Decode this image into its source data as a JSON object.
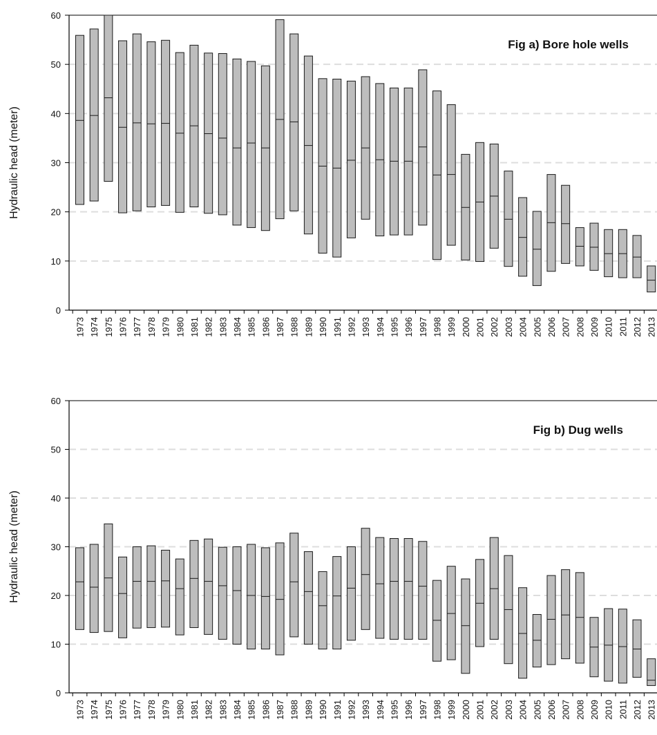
{
  "colors": {
    "box_fill": "#bdbdbd",
    "box_stroke": "#1a1a1a",
    "grid": "#dddddd",
    "axis": "#000000"
  },
  "chart_data": [
    {
      "type": "boxplot",
      "title": "Fig a) Bore hole wells",
      "ylabel": "Hydraulic head (meter)",
      "xlabel": "",
      "ylim": [
        0,
        60
      ],
      "yticks": [
        0,
        10,
        20,
        30,
        40,
        50,
        60
      ],
      "grid": "horizontal dashed",
      "categories": [
        "1973",
        "1974",
        "1975",
        "1976",
        "1977",
        "1978",
        "1979",
        "1980",
        "1981",
        "1982",
        "1983",
        "1984",
        "1985",
        "1986",
        "1987",
        "1988",
        "1989",
        "1990",
        "1991",
        "1992",
        "1993",
        "1994",
        "1995",
        "1996",
        "1997",
        "1998",
        "1999",
        "2000",
        "2001",
        "2002",
        "2003",
        "2004",
        "2005",
        "2006",
        "2007",
        "2008",
        "2009",
        "2010",
        "2011",
        "2012",
        "2013"
      ],
      "low": [
        21.5,
        22.2,
        26.2,
        19.8,
        20.2,
        21.0,
        21.3,
        19.9,
        21.0,
        19.7,
        19.4,
        17.3,
        16.8,
        16.2,
        18.6,
        20.2,
        15.5,
        11.6,
        10.8,
        14.7,
        18.5,
        15.1,
        15.3,
        15.3,
        17.3,
        10.3,
        13.2,
        10.2,
        9.9,
        12.6,
        8.9,
        6.9,
        5.0,
        7.9,
        9.5,
        9.0,
        8.1,
        6.8,
        6.6,
        6.6,
        3.7
      ],
      "median": [
        38.6,
        39.6,
        43.2,
        37.2,
        38.1,
        37.9,
        38.0,
        36.0,
        37.5,
        35.9,
        35.0,
        33.0,
        34.0,
        33.0,
        38.8,
        38.3,
        33.5,
        29.3,
        28.9,
        30.5,
        33.0,
        30.6,
        30.3,
        30.3,
        33.2,
        27.5,
        27.6,
        20.9,
        22.0,
        23.2,
        18.5,
        14.8,
        12.4,
        17.8,
        17.6,
        13.0,
        12.8,
        11.5,
        11.5,
        10.8,
        6.1
      ],
      "high": [
        55.9,
        57.2,
        60.0,
        54.8,
        56.2,
        54.6,
        54.9,
        52.4,
        53.9,
        52.3,
        52.2,
        51.1,
        50.6,
        49.7,
        59.1,
        56.2,
        51.7,
        47.1,
        47.0,
        46.6,
        47.5,
        46.1,
        45.2,
        45.2,
        48.9,
        44.6,
        41.8,
        31.7,
        34.1,
        33.8,
        28.3,
        22.9,
        20.1,
        27.6,
        25.4,
        16.8,
        17.7,
        16.4,
        16.4,
        15.2,
        9.0
      ]
    },
    {
      "type": "boxplot",
      "title": "Fig b) Dug wells",
      "ylabel": "Hydraulic head (meter)",
      "xlabel": "",
      "ylim": [
        0,
        60
      ],
      "yticks": [
        0,
        10,
        20,
        30,
        40,
        50,
        60
      ],
      "grid": "horizontal dashed",
      "categories": [
        "1973",
        "1974",
        "1975",
        "1976",
        "1977",
        "1978",
        "1979",
        "1980",
        "1981",
        "1982",
        "1983",
        "1984",
        "1985",
        "1986",
        "1987",
        "1988",
        "1989",
        "1990",
        "1991",
        "1992",
        "1993",
        "1994",
        "1995",
        "1996",
        "1997",
        "1998",
        "1999",
        "2000",
        "2001",
        "2002",
        "2003",
        "2004",
        "2005",
        "2006",
        "2007",
        "2008",
        "2009",
        "2010",
        "2011",
        "2012",
        "2013"
      ],
      "low": [
        13.0,
        12.4,
        12.6,
        11.3,
        13.3,
        13.4,
        13.5,
        11.9,
        13.4,
        12.0,
        11.0,
        10.0,
        9.0,
        9.0,
        7.8,
        11.5,
        10.0,
        9.0,
        9.0,
        10.8,
        13.0,
        11.2,
        11.0,
        11.0,
        11.0,
        6.5,
        6.8,
        4.0,
        9.5,
        11.0,
        6.0,
        3.0,
        5.3,
        5.8,
        7.0,
        6.1,
        3.3,
        2.4,
        2.0,
        3.2,
        1.5
      ],
      "median": [
        22.8,
        21.7,
        23.6,
        20.4,
        22.9,
        22.9,
        23.0,
        21.4,
        23.5,
        22.9,
        22.0,
        21.0,
        20.0,
        19.8,
        19.2,
        22.8,
        20.8,
        17.9,
        19.9,
        21.5,
        24.3,
        22.4,
        22.9,
        22.9,
        21.9,
        14.9,
        16.3,
        13.8,
        18.4,
        21.4,
        17.1,
        12.2,
        10.8,
        15.1,
        16.0,
        15.5,
        9.4,
        9.8,
        9.5,
        9.0,
        2.6
      ],
      "high": [
        29.8,
        30.5,
        34.7,
        27.9,
        30.0,
        30.2,
        29.3,
        27.5,
        31.3,
        31.6,
        29.9,
        30.0,
        30.5,
        29.8,
        30.8,
        32.8,
        29.0,
        24.9,
        28.0,
        30.0,
        33.8,
        31.9,
        31.7,
        31.7,
        31.1,
        23.1,
        26.0,
        23.4,
        27.4,
        31.9,
        28.2,
        21.6,
        16.1,
        24.1,
        25.3,
        24.7,
        15.5,
        17.3,
        17.2,
        15.0,
        7.0
      ]
    }
  ]
}
